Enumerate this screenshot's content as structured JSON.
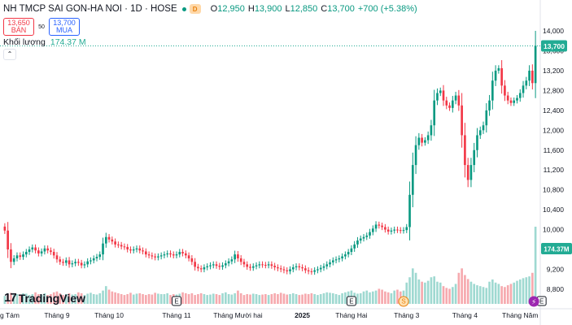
{
  "header": {
    "symbol_title": "NH TMCP SAI GON-HA NOI · 1D · HOSE",
    "badge": "D",
    "ohlc": {
      "o_label": "O",
      "o_value": "12,950",
      "h_label": "H",
      "h_value": "13,900",
      "l_label": "L",
      "l_value": "12,850",
      "c_label": "C",
      "c_value": "13,700",
      "change": "+700 (+5.38%)"
    }
  },
  "trade": {
    "sell_price": "13,650",
    "sell_label": "BÁN",
    "spread": "50",
    "buy_price": "13,700",
    "buy_label": "MUA"
  },
  "volume_legend": {
    "label": "Khối lượng",
    "value": "174.37 M"
  },
  "collapse_glyph": "⌃",
  "logo": {
    "mark": "17",
    "text": "TradingView"
  },
  "colors": {
    "up": "#089981",
    "down": "#f23645",
    "vol_up": "#9fd9d1",
    "vol_down": "#f6a9ae",
    "price_tag": "#22ab94"
  },
  "chart_data": {
    "type": "candlestick",
    "yticks": [
      "14,000",
      "13,600",
      "13,200",
      "12,800",
      "12,400",
      "12,000",
      "11,600",
      "11,200",
      "10,800",
      "10,400",
      "10,000",
      "9,600",
      "9,200",
      "8,800"
    ],
    "ylim": [
      8700,
      14100
    ],
    "xticks": [
      {
        "label": "g Tám",
        "idx": 0
      },
      {
        "label": "Tháng 9",
        "idx": 17
      },
      {
        "label": "Tháng 10",
        "idx": 34
      },
      {
        "label": "Tháng 11",
        "idx": 56
      },
      {
        "label": "Tháng Mười hai",
        "idx": 76
      },
      {
        "label": "2025",
        "idx": 97
      },
      {
        "label": "Tháng Hai",
        "idx": 113
      },
      {
        "label": "Tháng 3",
        "idx": 131
      },
      {
        "label": "Tháng 4",
        "idx": 150
      },
      {
        "label": "Tháng Năm",
        "idx": 168
      }
    ],
    "last_price": "13,700",
    "last_volume": "174.37M",
    "events": [
      {
        "label": "E",
        "idx": 56,
        "color": "#131722"
      },
      {
        "label": "E",
        "idx": 113,
        "color": "#131722"
      },
      {
        "label": "S",
        "idx": 130,
        "color": "#e8800c"
      },
      {
        "label": "E",
        "idx": 175,
        "color": "#131722"
      }
    ],
    "close": [
      9980,
      9600,
      9350,
      9420,
      9480,
      9450,
      9500,
      9550,
      9600,
      9640,
      9580,
      9520,
      9560,
      9620,
      9580,
      9550,
      9480,
      9400,
      9350,
      9330,
      9380,
      9300,
      9320,
      9350,
      9330,
      9280,
      9300,
      9360,
      9380,
      9420,
      9450,
      9500,
      9720,
      9850,
      9800,
      9760,
      9700,
      9690,
      9660,
      9650,
      9600,
      9580,
      9600,
      9620,
      9580,
      9560,
      9500,
      9480,
      9460,
      9440,
      9460,
      9480,
      9500,
      9520,
      9500,
      9480,
      9500,
      9550,
      9520,
      9480,
      9420,
      9350,
      9250,
      9220,
      9200,
      9240,
      9260,
      9280,
      9300,
      9270,
      9250,
      9280,
      9320,
      9360,
      9400,
      9500,
      9420,
      9350,
      9300,
      9250,
      9230,
      9260,
      9280,
      9300,
      9290,
      9280,
      9300,
      9270,
      9240,
      9220,
      9200,
      9180,
      9160,
      9200,
      9240,
      9260,
      9240,
      9220,
      9180,
      9160,
      9150,
      9180,
      9200,
      9230,
      9260,
      9300,
      9340,
      9380,
      9400,
      9420,
      9460,
      9500,
      9550,
      9620,
      9700,
      9780,
      9820,
      9850,
      9880,
      9950,
      10020,
      10100,
      10080,
      10050,
      10000,
      9960,
      9980,
      10000,
      9990,
      9980,
      9990,
      10050,
      10700,
      11300,
      11700,
      11850,
      11750,
      11800,
      11900,
      12100,
      12600,
      12750,
      12800,
      12600,
      12500,
      12450,
      12600,
      12700,
      12500,
      11900,
      11300,
      11000,
      11300,
      11600,
      11900,
      12000,
      12100,
      12400,
      12600,
      13000,
      13200,
      13250,
      12900,
      12700,
      12600,
      12550,
      12600,
      12650,
      12750,
      12900,
      13000,
      13200,
      12950,
      13700
    ],
    "volume": [
      18,
      22,
      25,
      20,
      22,
      21,
      24,
      23,
      20,
      22,
      26,
      22,
      21,
      24,
      20,
      22,
      26,
      28,
      24,
      20,
      22,
      24,
      21,
      22,
      26,
      24,
      20,
      23,
      25,
      22,
      21,
      24,
      30,
      40,
      32,
      28,
      26,
      24,
      22,
      20,
      22,
      25,
      21,
      23,
      24,
      22,
      20,
      22,
      21,
      25,
      23,
      22,
      22,
      24,
      20,
      22,
      21,
      23,
      26,
      24,
      22,
      24,
      20,
      22,
      24,
      22,
      20,
      21,
      23,
      22,
      20,
      24,
      26,
      22,
      21,
      24,
      30,
      24,
      20,
      22,
      21,
      23,
      22,
      20,
      21,
      22,
      20,
      22,
      24,
      22,
      25,
      23,
      21,
      22,
      24,
      22,
      20,
      21,
      23,
      22,
      24,
      22,
      20,
      22,
      24,
      26,
      25,
      24,
      22,
      20,
      24,
      26,
      28,
      30,
      25,
      23,
      24,
      28,
      30,
      26,
      28,
      30,
      34,
      32,
      28,
      26,
      24,
      30,
      32,
      28,
      30,
      48,
      60,
      80,
      70,
      55,
      50,
      48,
      52,
      60,
      62,
      50,
      48,
      40,
      36,
      34,
      38,
      45,
      70,
      80,
      65,
      56,
      50,
      45,
      42,
      40,
      38,
      36,
      50,
      55,
      48,
      45,
      40,
      38,
      42,
      45,
      48,
      52,
      55,
      58,
      60,
      62,
      70,
      174
    ]
  }
}
